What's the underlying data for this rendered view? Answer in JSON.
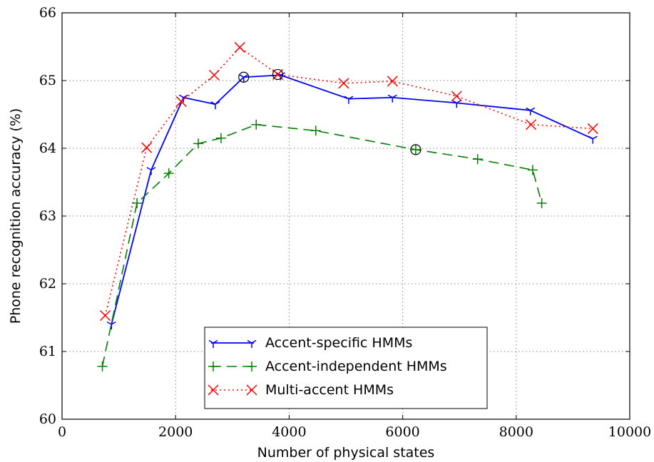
{
  "chart_data": {
    "type": "line",
    "xlabel": "Number of physical states",
    "ylabel": "Phone recognition accuracy (%)",
    "xlim": [
      0,
      10000
    ],
    "ylim": [
      60,
      66
    ],
    "xticks": [
      0,
      2000,
      4000,
      6000,
      8000,
      10000
    ],
    "yticks": [
      60,
      61,
      62,
      63,
      64,
      65,
      66
    ],
    "xtick_labels": [
      "0",
      "2000",
      "4000",
      "6000",
      "8000",
      "10000"
    ],
    "ytick_labels": [
      "60",
      "61",
      "62",
      "63",
      "64",
      "65",
      "66"
    ],
    "grid": true,
    "legend_position": "bottom-center",
    "series": [
      {
        "name": "Accent-specific HMMs",
        "color": "#0000ff",
        "style": "solid",
        "marker": "tri_down",
        "x": [
          870,
          1570,
          2140,
          2700,
          3200,
          3850,
          5050,
          5820,
          6950,
          8250,
          9350
        ],
        "y": [
          61.4,
          63.68,
          64.75,
          64.65,
          65.05,
          65.08,
          64.73,
          64.75,
          64.67,
          64.56,
          64.14
        ],
        "highlight_x": [
          3200
        ]
      },
      {
        "name": "Accent-independent HMMs",
        "color": "#008000",
        "style": "dashed",
        "marker": "plus",
        "x": [
          710,
          1320,
          1880,
          2400,
          2800,
          3420,
          4470,
          6230,
          7320,
          8290,
          8450
        ],
        "y": [
          60.78,
          63.19,
          63.63,
          64.07,
          64.15,
          64.35,
          64.26,
          63.98,
          63.84,
          63.68,
          63.19
        ],
        "highlight_x": [
          6230
        ]
      },
      {
        "name": "Multi-accent HMMs",
        "color": "#ff0000",
        "style": "dotted",
        "marker": "x",
        "x": [
          760,
          1490,
          2100,
          2680,
          3130,
          3800,
          4960,
          5820,
          6950,
          8260,
          9350
        ],
        "y": [
          61.53,
          64.01,
          64.69,
          65.08,
          65.49,
          65.09,
          64.96,
          64.99,
          64.77,
          64.35,
          64.29
        ],
        "highlight_x": [
          3800
        ]
      }
    ]
  }
}
